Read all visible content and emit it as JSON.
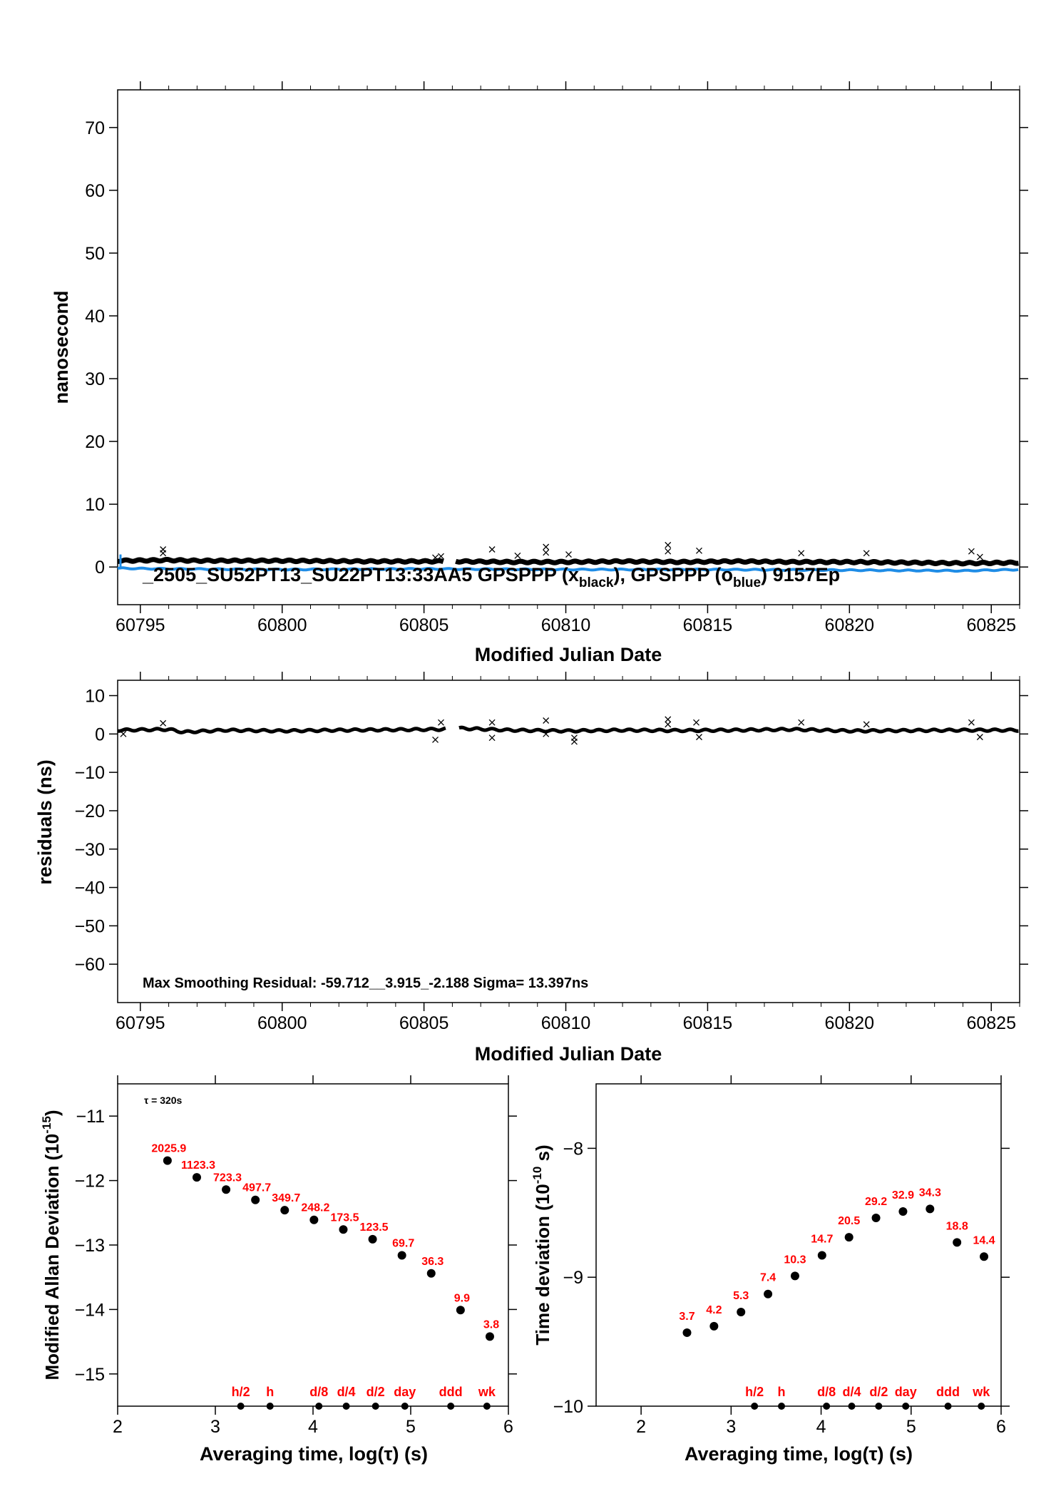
{
  "colors": {
    "black_series": "#000000",
    "blue_series": "#1e8ce6",
    "labels": "#ff0000",
    "frame": "#000000"
  },
  "chart_data": [
    {
      "type": "scatter",
      "id": "phase",
      "xlabel": "Modified Julian Date",
      "ylabel": "nanosecond",
      "xlim": [
        60794.2,
        60826
      ],
      "ylim": [
        -6,
        76
      ],
      "xticks": [
        60795,
        60800,
        60805,
        60810,
        60815,
        60820,
        60825
      ],
      "yticks": [
        0,
        10,
        20,
        30,
        40,
        50,
        60,
        70
      ],
      "caption": "_2505_SU52PT13_SU22PT13:33AA5    GPSPPP (x",
      "caption_sub1": "black",
      "caption_mid": "),  GPSPPP (o",
      "caption_sub2": "blue",
      "caption_end": ")  9157Ep",
      "series": [
        {
          "name": "GPSPPP (x black)",
          "color": "#000000",
          "x": [
            60794.2,
            60796.0,
            60797.0,
            60800.0,
            60803.0,
            60805.5,
            60806.2,
            60808.0,
            60810.0,
            60812.0,
            60814.0,
            60816.0,
            60818.0,
            60820.0,
            60822.0,
            60824.0,
            60826.0
          ],
          "y": [
            1.0,
            1.1,
            1.0,
            1.0,
            0.9,
            0.9,
            0.9,
            0.8,
            0.8,
            0.9,
            0.8,
            0.9,
            0.8,
            0.8,
            0.7,
            0.6,
            0.7
          ]
        },
        {
          "name": "GPSPPP (o blue)",
          "color": "#1e8ce6",
          "x": [
            60794.2,
            60796.0,
            60800.0,
            60805.0,
            60810.0,
            60815.0,
            60820.0,
            60824.0,
            60826.0
          ],
          "y": [
            -0.2,
            -0.3,
            -0.4,
            -0.3,
            -0.4,
            -0.4,
            -0.5,
            -0.6,
            -0.4
          ]
        }
      ],
      "outliers_x": [
        60795.8,
        60795.8,
        60805.4,
        60805.6,
        60807.4,
        60808.3,
        60809.3,
        60809.3,
        60810.1,
        60813.6,
        60813.6,
        60814.7,
        60818.3,
        60820.6,
        60824.3,
        60824.6
      ],
      "outliers_y": [
        2.8,
        2.2,
        1.5,
        1.7,
        2.8,
        1.8,
        3.2,
        2.3,
        2.0,
        3.5,
        2.5,
        2.6,
        2.2,
        2.2,
        2.5,
        1.6
      ]
    },
    {
      "type": "scatter",
      "id": "residuals",
      "xlabel": "Modified Julian Date",
      "ylabel": "residuals (ns)",
      "xlim": [
        60794.2,
        60826
      ],
      "ylim": [
        -70,
        14
      ],
      "xticks": [
        60795,
        60800,
        60805,
        60810,
        60815,
        60820,
        60825
      ],
      "yticks": [
        10,
        0,
        -10,
        -20,
        -30,
        -40,
        -50,
        -60
      ],
      "annotation": "Max Smoothing Residual: -59.712__3.915_-2.188  Sigma= 13.397ns",
      "series": [
        {
          "name": "residuals",
          "color": "#000000",
          "x": [
            60794.2,
            60796.0,
            60796.5,
            60798.0,
            60800.0,
            60802.0,
            60805.5,
            60806.2,
            60808.0,
            60810.0,
            60812.0,
            60814.0,
            60816.0,
            60818.0,
            60820.0,
            60822.0,
            60824.0,
            60826.0
          ],
          "y": [
            1.0,
            1.2,
            0.5,
            1.0,
            0.8,
            1.0,
            1.2,
            1.5,
            1.0,
            0.8,
            1.0,
            0.9,
            1.0,
            1.2,
            0.8,
            0.9,
            1.0,
            1.0
          ]
        }
      ],
      "outliers_x": [
        60794.4,
        60795.8,
        60805.4,
        60805.6,
        60807.4,
        60807.4,
        60809.3,
        60809.3,
        60810.3,
        60810.3,
        60813.6,
        60813.6,
        60814.6,
        60814.7,
        60818.3,
        60820.6,
        60824.3,
        60824.6
      ],
      "outliers_y": [
        0.0,
        2.8,
        -1.5,
        3.0,
        3.0,
        -1.0,
        3.5,
        0.0,
        -1.0,
        -2.0,
        3.8,
        2.5,
        3.0,
        -0.8,
        3.0,
        2.5,
        3.0,
        -0.8
      ]
    },
    {
      "type": "scatter",
      "id": "mdev",
      "xlabel": "Averaging time, log(τ) (s)",
      "ylabel_main": "Modified Allan Deviation (10",
      "ylabel_sup": "-15",
      "ylabel_end": ")",
      "tau_note": "τ = 320s",
      "xlim": [
        2,
        6
      ],
      "ylim": [
        -15.5,
        -10.5
      ],
      "xticks": [
        2,
        3,
        4,
        5,
        6
      ],
      "yticks": [
        -11,
        -12,
        -13,
        -14,
        -15
      ],
      "x": [
        2.51,
        2.81,
        3.11,
        3.41,
        3.71,
        4.01,
        4.31,
        4.61,
        4.91,
        5.21,
        5.51,
        5.81
      ],
      "y": [
        -11.69,
        -11.95,
        -12.14,
        -12.3,
        -12.46,
        -12.61,
        -12.76,
        -12.91,
        -13.16,
        -13.44,
        -14.01,
        -14.42
      ],
      "point_labels": [
        "2025.9",
        "1123.3",
        "723.3",
        "497.7",
        "349.7",
        "248.2",
        "173.5",
        "123.5",
        "69.7",
        "36.3",
        "9.9",
        "3.8"
      ],
      "marker_x": [
        3.26,
        3.56,
        4.06,
        4.34,
        4.64,
        4.94,
        5.41,
        5.78
      ],
      "marker_labels": [
        "h/2",
        "h",
        "d/8",
        "d/4",
        "d/2",
        "day",
        "ddd",
        "wk"
      ]
    },
    {
      "type": "scatter",
      "id": "tdev",
      "xlabel": "Averaging time, log(τ) (s)",
      "ylabel_main": "Time deviation (10",
      "ylabel_sup": "-10",
      "ylabel_end": " s)",
      "xlim": [
        1.5,
        6
      ],
      "ylim": [
        -10,
        -7.5
      ],
      "xticks": [
        2,
        3,
        4,
        5,
        6
      ],
      "yticks": [
        -8,
        -9,
        -10
      ],
      "x": [
        2.51,
        2.81,
        3.11,
        3.41,
        3.71,
        4.01,
        4.31,
        4.61,
        4.91,
        5.21,
        5.51,
        5.81
      ],
      "y": [
        -9.43,
        -9.38,
        -9.27,
        -9.13,
        -8.99,
        -8.83,
        -8.69,
        -8.54,
        -8.49,
        -8.47,
        -8.73,
        -8.84
      ],
      "point_labels": [
        "3.7",
        "4.2",
        "5.3",
        "7.4",
        "10.3",
        "14.7",
        "20.5",
        "29.2",
        "32.9",
        "34.3",
        "18.8",
        "14.4"
      ],
      "marker_x": [
        3.26,
        3.56,
        4.06,
        4.34,
        4.64,
        4.94,
        5.41,
        5.78
      ],
      "marker_labels": [
        "h/2",
        "h",
        "d/8",
        "d/4",
        "d/2",
        "day",
        "ddd",
        "wk"
      ]
    }
  ]
}
